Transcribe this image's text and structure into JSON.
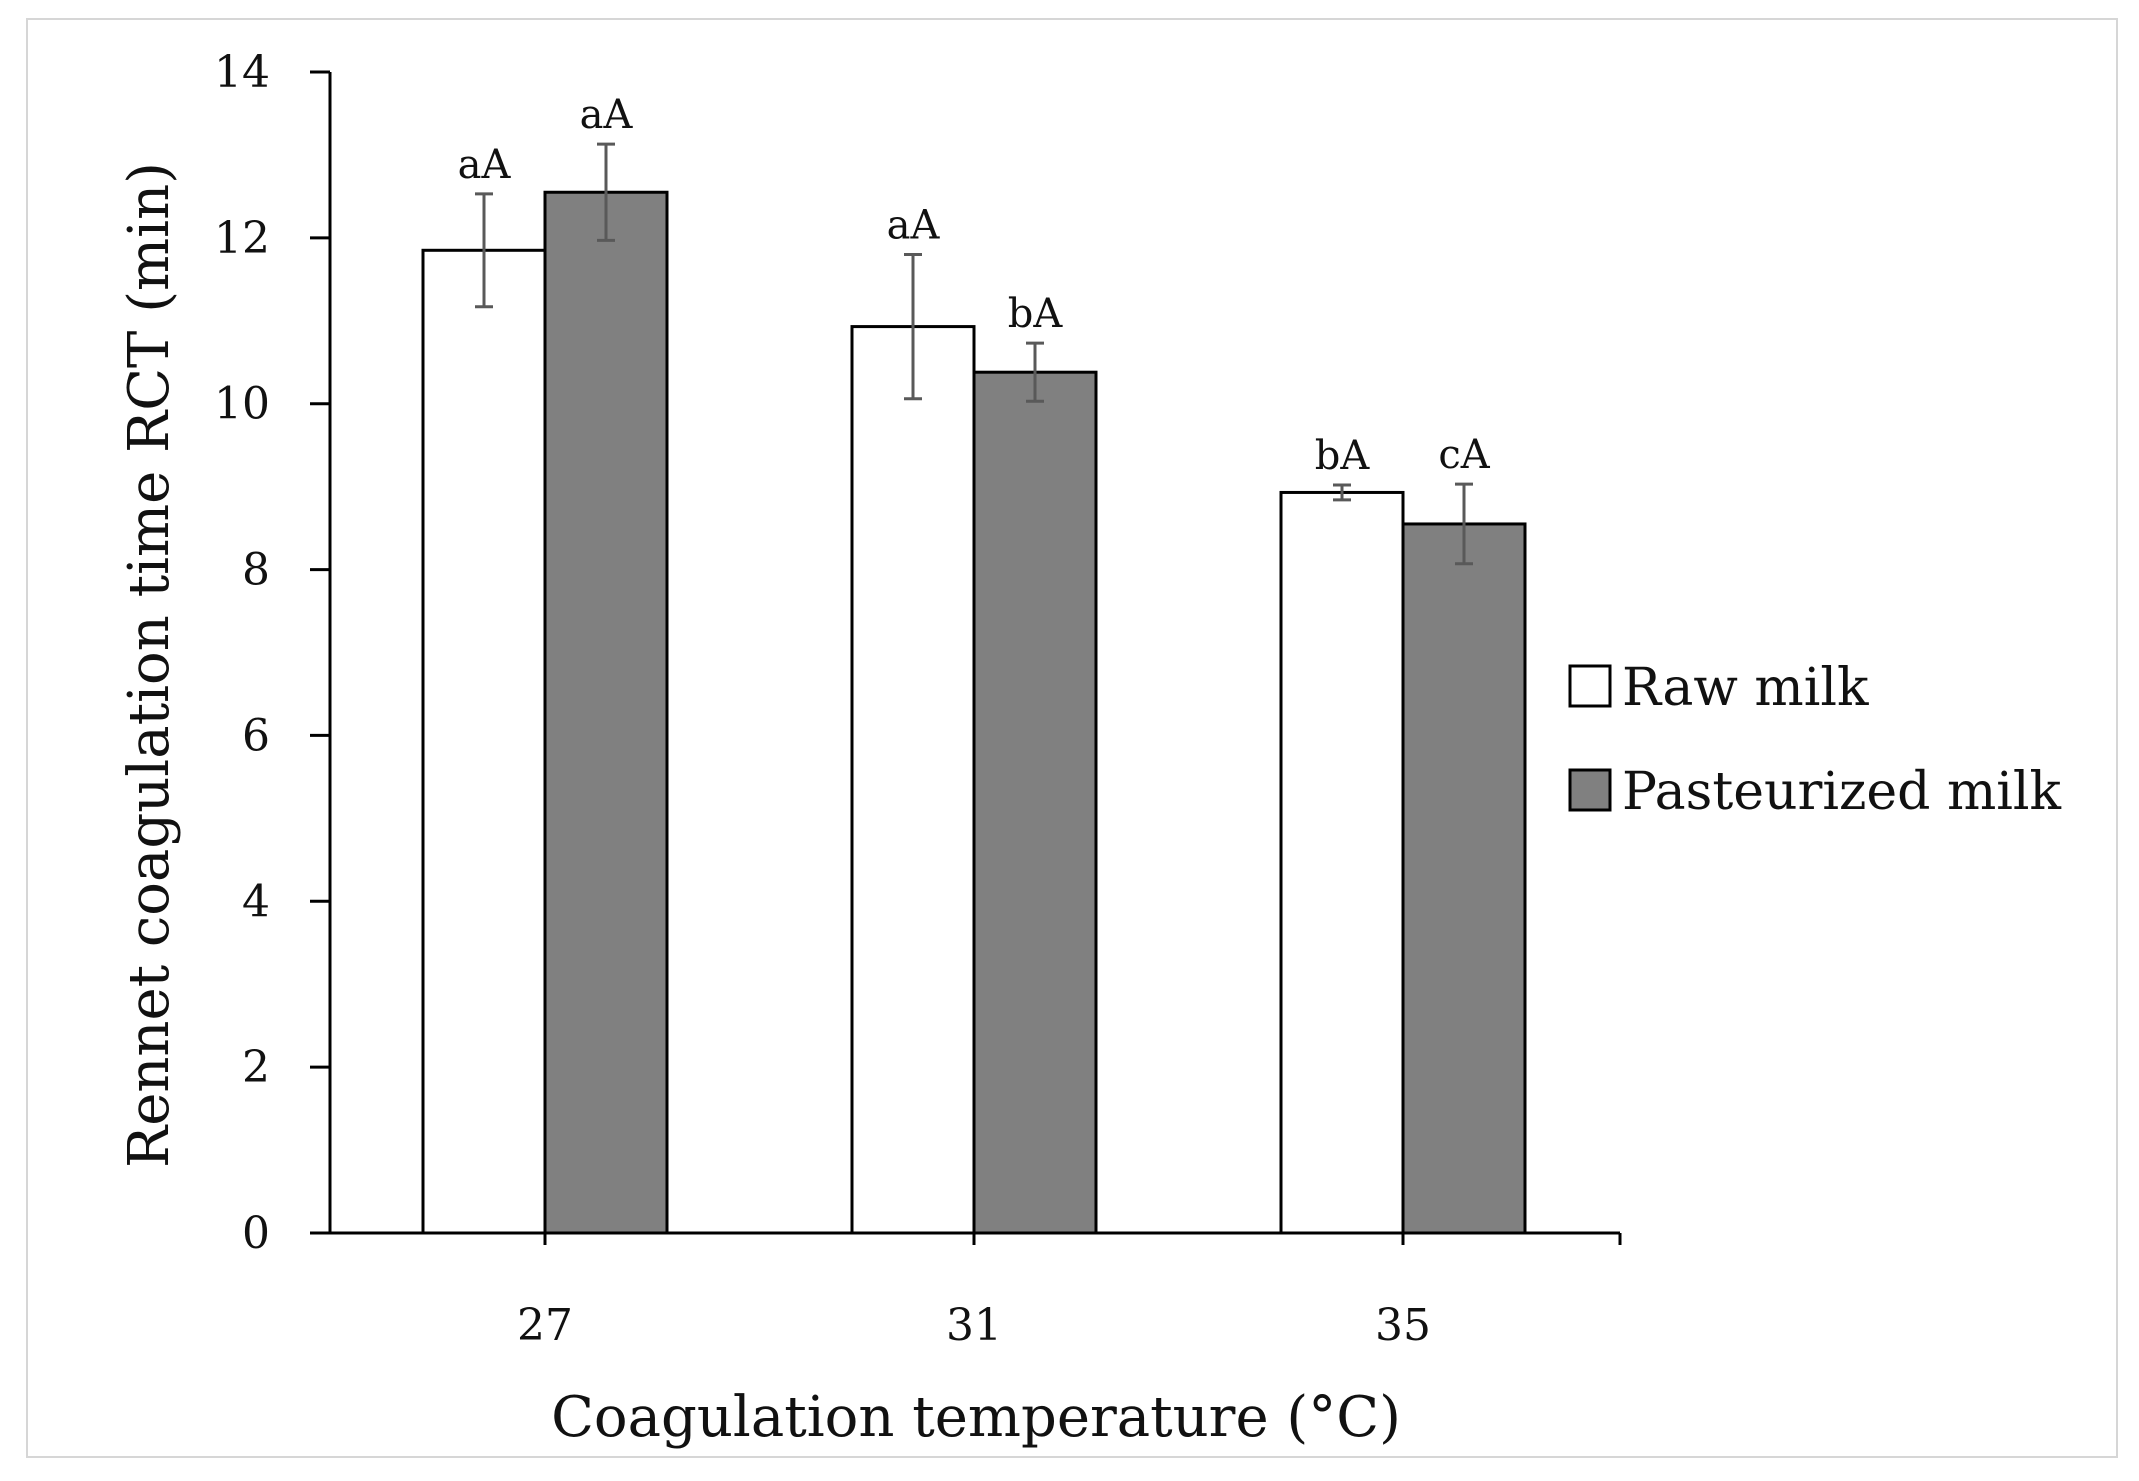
{
  "chart_data": {
    "type": "bar",
    "title": "",
    "xlabel": "Coagulation temperature (°C)",
    "ylabel": "Rennet coagulation time RCT (min)",
    "categories": [
      "27",
      "31",
      "35"
    ],
    "ylim": [
      0,
      14
    ],
    "yticks": [
      0,
      2,
      4,
      6,
      8,
      10,
      12,
      14
    ],
    "ytick_labels": [
      "0",
      "2",
      "4",
      "6",
      "8",
      "10",
      "12",
      "14"
    ],
    "grid": false,
    "legend_position": "right",
    "series": [
      {
        "name": "Raw milk",
        "color": "#ffffff",
        "values": [
          11.85,
          10.93,
          8.93
        ],
        "errors": [
          0.68,
          0.87,
          0.09
        ],
        "labels": [
          "aA",
          "aA",
          "bA"
        ]
      },
      {
        "name": "Pasteurized milk",
        "color": "#808080",
        "values": [
          12.55,
          10.38,
          8.55
        ],
        "errors": [
          0.58,
          0.35,
          0.48
        ],
        "labels": [
          "aA",
          "bA",
          "cA"
        ]
      }
    ],
    "colors": {
      "edge": "#000000",
      "error_bar": "#595959",
      "axis": "#000000"
    }
  }
}
